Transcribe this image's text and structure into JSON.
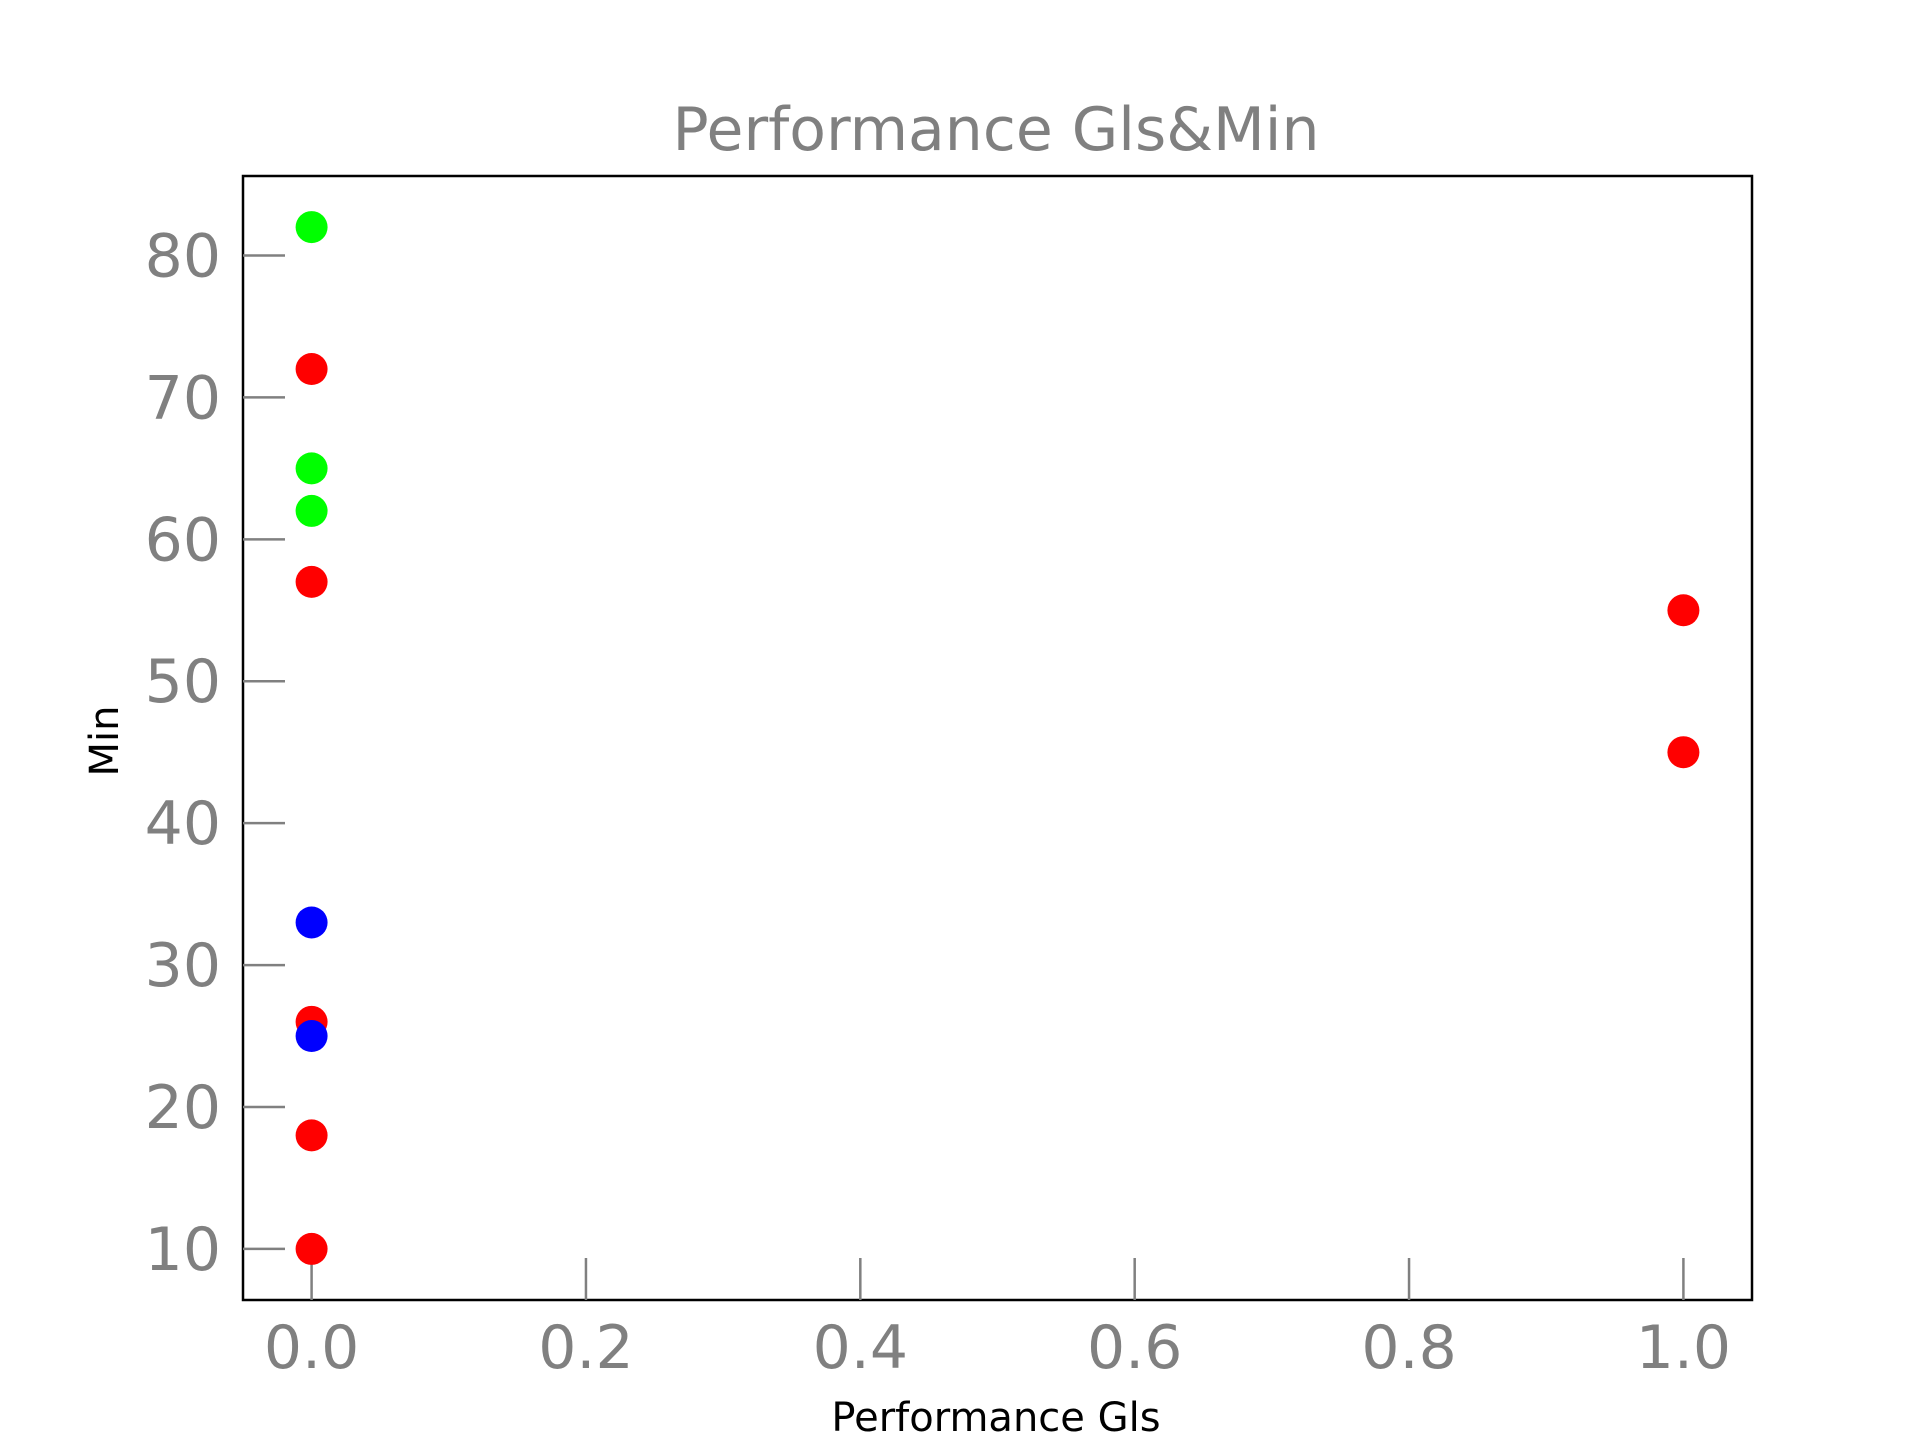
{
  "chart_data": {
    "type": "scatter",
    "title": "Performance Gls&Min",
    "xlabel": "Performance Gls",
    "ylabel": "Min",
    "xlim": [
      -0.05,
      1.05
    ],
    "ylim": [
      6.4,
      85.6
    ],
    "xticks": [
      0.0,
      0.2,
      0.4,
      0.6,
      0.8,
      1.0
    ],
    "xtick_labels": [
      "0.0",
      "0.2",
      "0.4",
      "0.6",
      "0.8",
      "1.0"
    ],
    "yticks": [
      10,
      20,
      30,
      40,
      50,
      60,
      70,
      80
    ],
    "ytick_labels": [
      "10",
      "20",
      "30",
      "40",
      "50",
      "60",
      "70",
      "80"
    ],
    "grid": false,
    "legend": "none",
    "points": [
      {
        "x": 0,
        "y": 82,
        "color": "#00ff00"
      },
      {
        "x": 0,
        "y": 72,
        "color": "#ff0000"
      },
      {
        "x": 0,
        "y": 65,
        "color": "#00ff00"
      },
      {
        "x": 0,
        "y": 62,
        "color": "#00ff00"
      },
      {
        "x": 0,
        "y": 57,
        "color": "#ff0000"
      },
      {
        "x": 0,
        "y": 33,
        "color": "#0000ff"
      },
      {
        "x": 0,
        "y": 26,
        "color": "#ff0000"
      },
      {
        "x": 0,
        "y": 25,
        "color": "#0000ff"
      },
      {
        "x": 0,
        "y": 18,
        "color": "#ff0000"
      },
      {
        "x": 0,
        "y": 10,
        "color": "#ff0000"
      },
      {
        "x": 1,
        "y": 55,
        "color": "#ff0000"
      },
      {
        "x": 1,
        "y": 45,
        "color": "#ff0000"
      }
    ]
  }
}
